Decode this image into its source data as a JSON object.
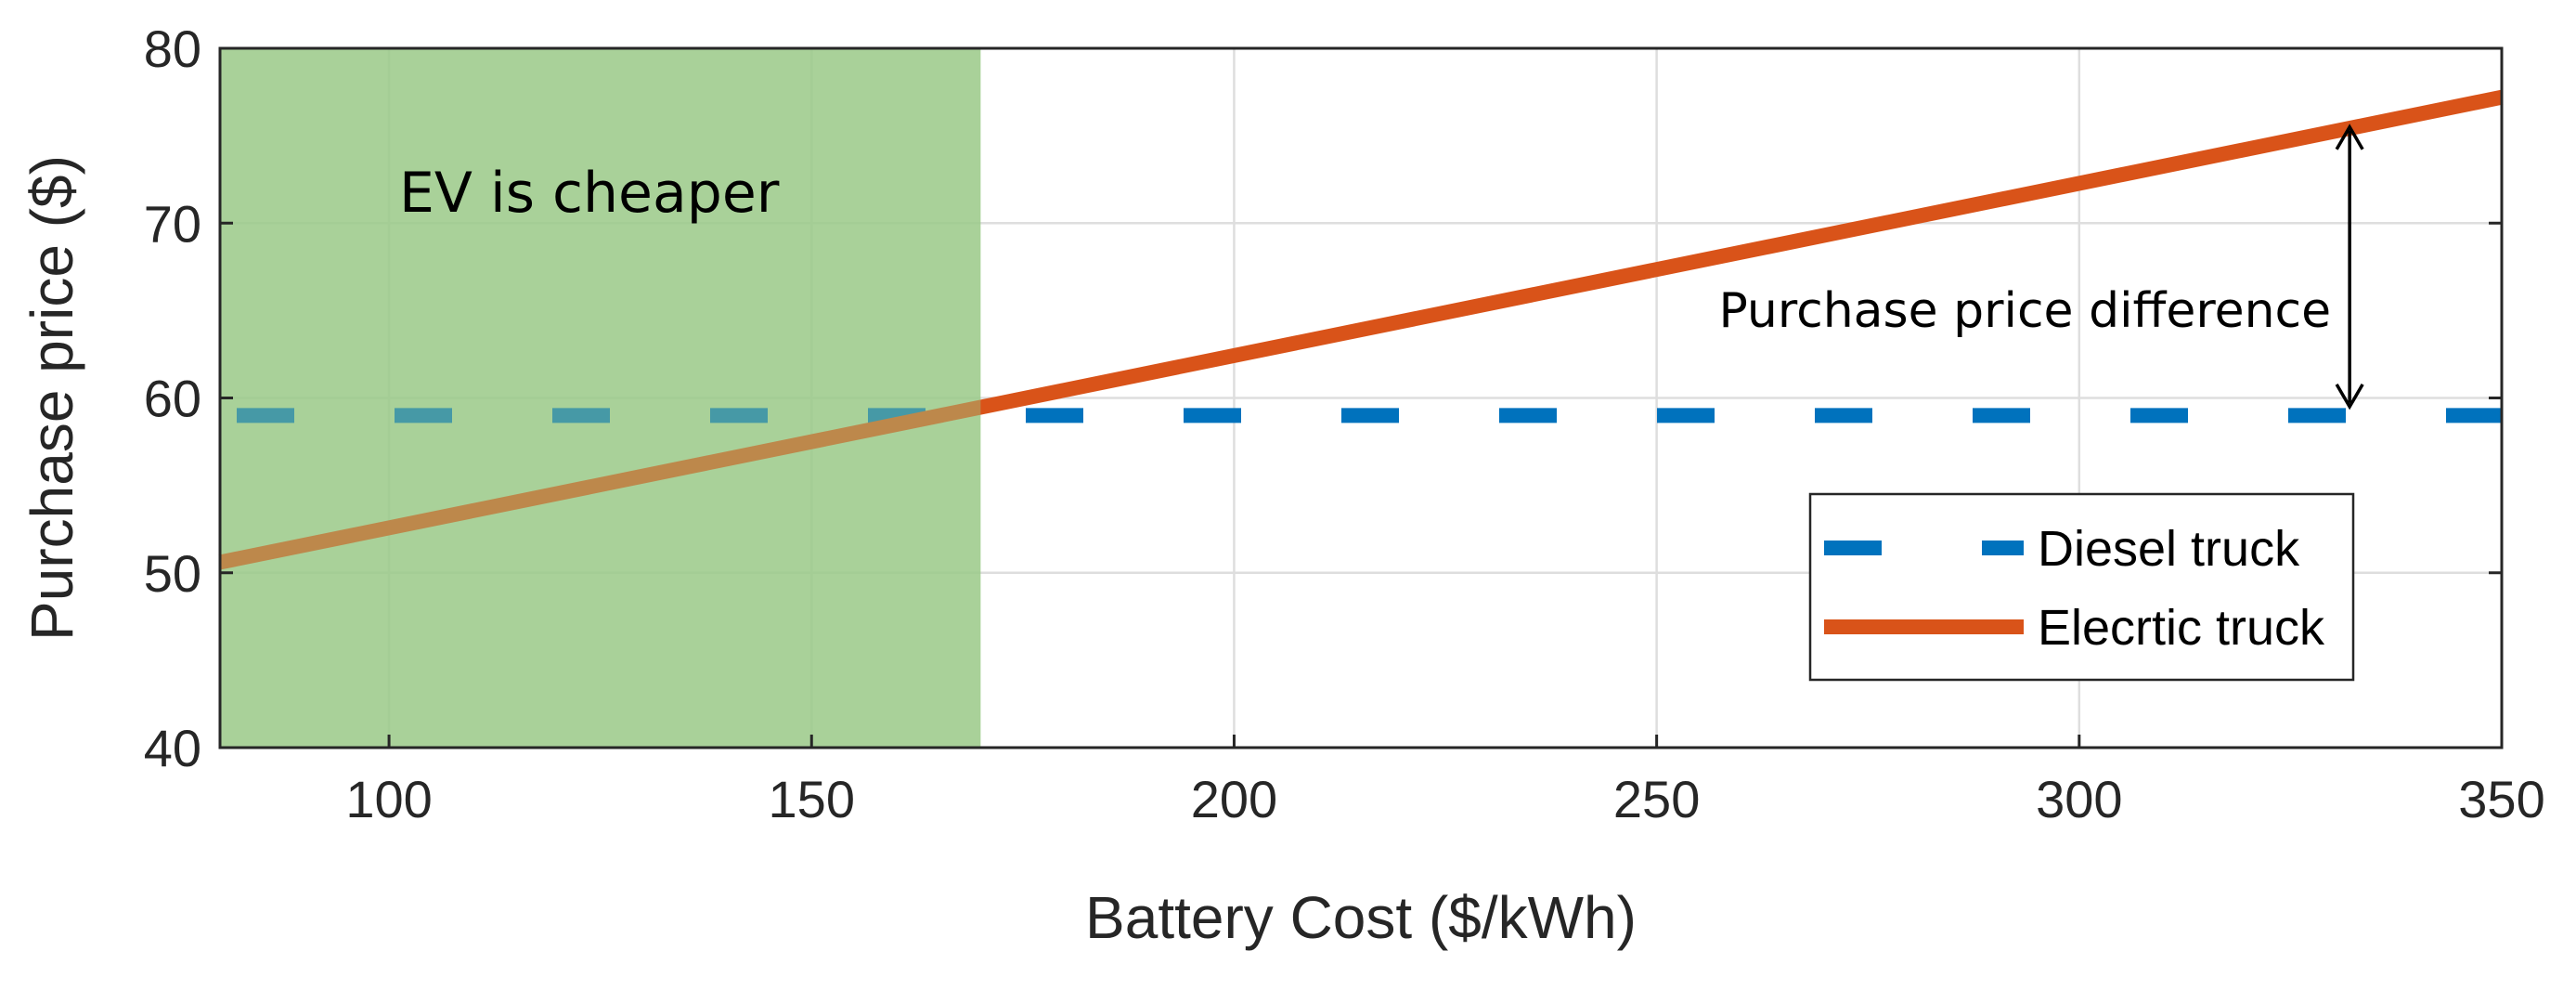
{
  "chart_data": {
    "type": "line",
    "title": "",
    "xlabel": "Battery Cost ($/kWh)",
    "ylabel": "Purchase price ($)",
    "xlim": [
      80,
      350
    ],
    "ylim": [
      40,
      80
    ],
    "xticks": [
      100,
      150,
      200,
      250,
      300,
      350
    ],
    "yticks": [
      40,
      50,
      60,
      70,
      80
    ],
    "grid": true,
    "legend_position": "bottom-right",
    "series": [
      {
        "name": "Diesel truck",
        "style": "dashed",
        "color": "#0072BD",
        "x": [
          80,
          350
        ],
        "y": [
          59,
          59
        ]
      },
      {
        "name": "Elecrtic truck",
        "style": "solid",
        "color": "#D95319",
        "x": [
          80,
          350
        ],
        "y": [
          50.6,
          77.2
        ]
      }
    ],
    "shaded_region": {
      "x": [
        80,
        170
      ],
      "color": "#9BC98A",
      "label": "EV is cheaper"
    },
    "annotations": [
      {
        "text": "Purchase price difference",
        "x": 332,
        "y_from": 59.5,
        "y_to": 75.5
      }
    ]
  }
}
